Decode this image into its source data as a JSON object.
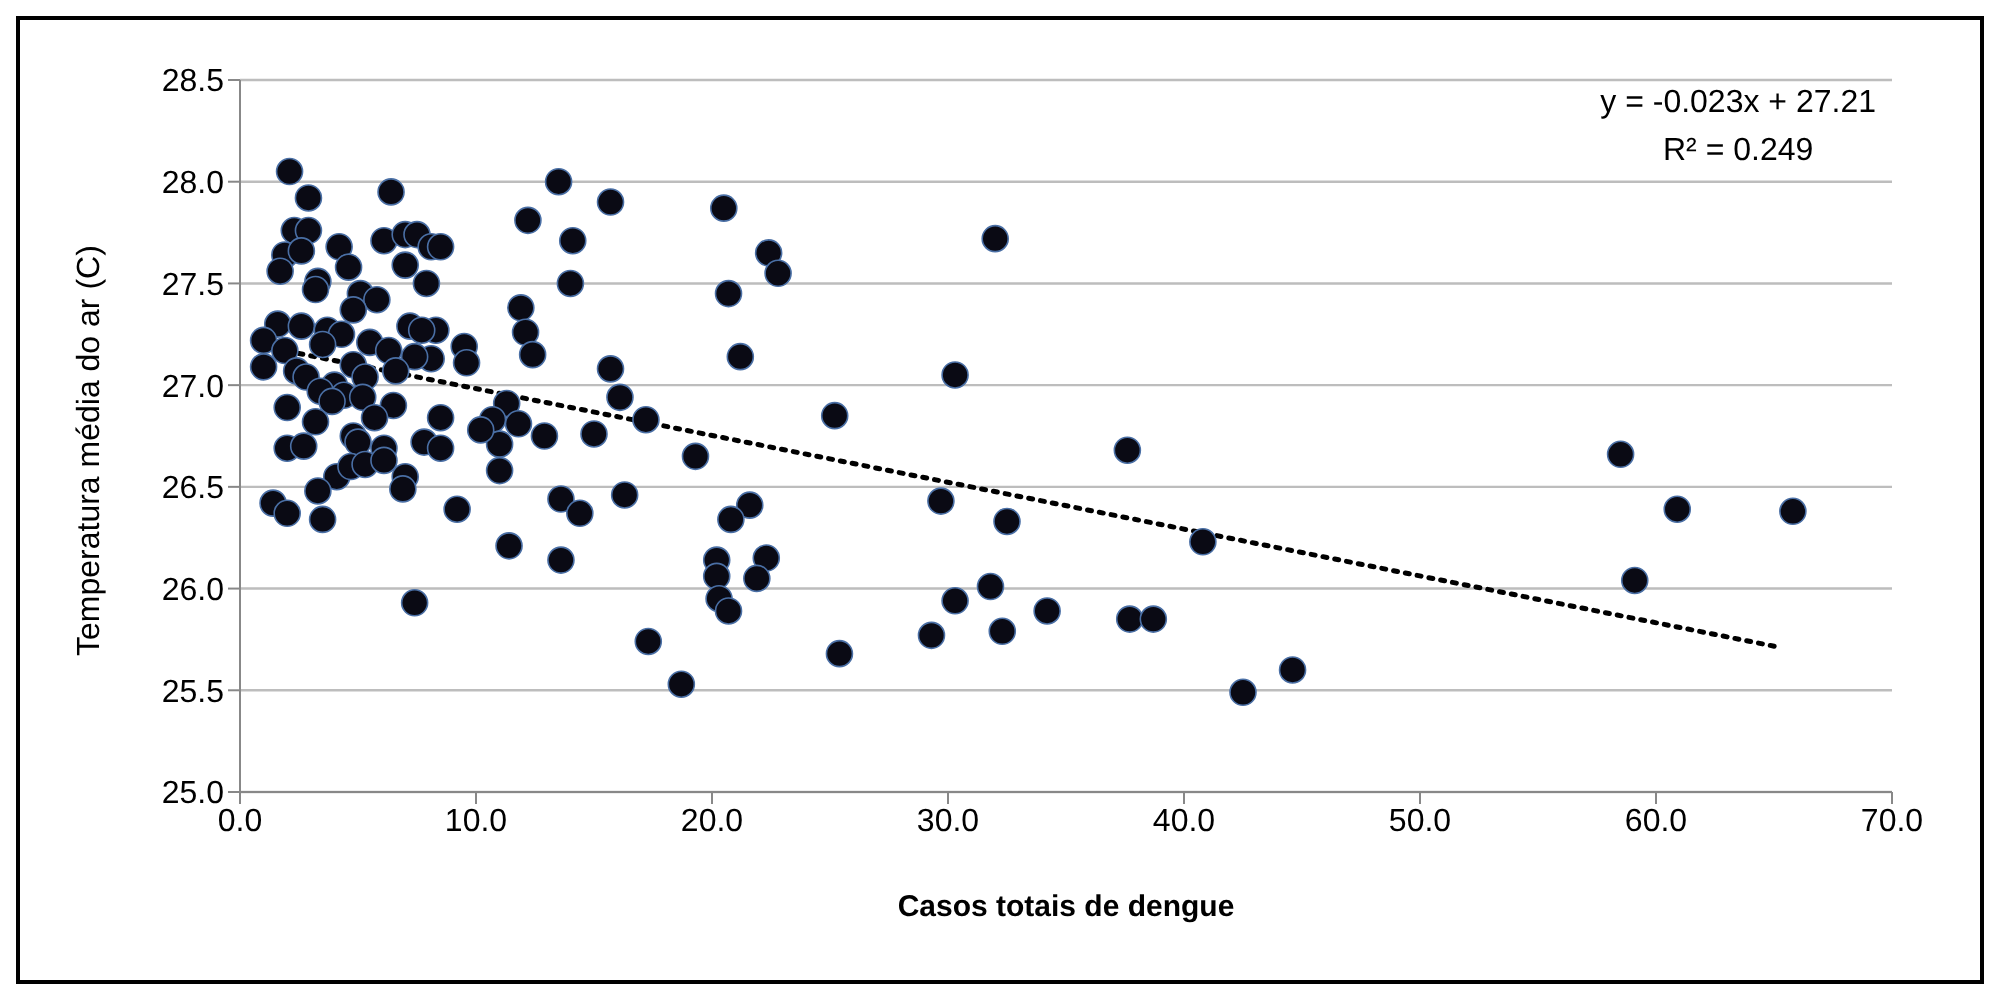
{
  "chart_data": {
    "type": "scatter",
    "xlabel": "Casos totais de dengue",
    "ylabel": "Temperatura média do ar (C)",
    "annotations": [
      "y = -0.023x + 27.21",
      "R² = 0.249"
    ],
    "xlim": [
      0,
      70
    ],
    "xticks": [
      {
        "value": 0,
        "label": "0.0"
      },
      {
        "value": 10,
        "label": "10.0"
      },
      {
        "value": 20,
        "label": "20.0"
      },
      {
        "value": 30,
        "label": "30.0"
      },
      {
        "value": 40,
        "label": "40.0"
      },
      {
        "value": 50,
        "label": "50.0"
      },
      {
        "value": 60,
        "label": "60.0"
      },
      {
        "value": 70,
        "label": "70.0"
      }
    ],
    "ylim": [
      25,
      28.5
    ],
    "yticks": [
      {
        "value": 25,
        "label": "25.0"
      },
      {
        "value": 25.5,
        "label": "25.5"
      },
      {
        "value": 26,
        "label": "26.0"
      },
      {
        "value": 26.5,
        "label": "26.5"
      },
      {
        "value": 27,
        "label": "27.0"
      },
      {
        "value": 27.5,
        "label": "27.5"
      },
      {
        "value": 28,
        "label": "28.0"
      },
      {
        "value": 28.5,
        "label": "28.5"
      }
    ],
    "grid": "y",
    "marker": "circle",
    "series": [
      {
        "color": "#0a0a14",
        "x": [
          2.1,
          2.9,
          6.4,
          2.3,
          2.9,
          12.2,
          13.5,
          1.9,
          2.6,
          4.2,
          6.1,
          7.0,
          7.5,
          8.1,
          8.5,
          1.7,
          4.6,
          7.0,
          3.3,
          3.2,
          7.9,
          5.1,
          5.8,
          4.8,
          11.9,
          12.1,
          12.4,
          1.6,
          1.0,
          1.0,
          2.6,
          3.7,
          4.3,
          1.9,
          3.5,
          5.5,
          7.2,
          8.3,
          7.7,
          9.5,
          9.6,
          6.3,
          8.1,
          7.4,
          2.4,
          2.8,
          4.8,
          5.3,
          6.6,
          4.0,
          4.4,
          3.4,
          3.9,
          5.2,
          2.0,
          3.2,
          6.5,
          5.7,
          8.5,
          4.8,
          5.0,
          2.0,
          2.7,
          6.1,
          7.8,
          8.5,
          4.1,
          4.7,
          5.3,
          6.1,
          7.0,
          6.9,
          3.3,
          1.4,
          2.0,
          3.5,
          9.2,
          11.3,
          10.7,
          11.8,
          11.0,
          10.2,
          12.9,
          11.0,
          11.4,
          7.4,
          15.7,
          14.1,
          14.0,
          20.5,
          22.4,
          22.8,
          20.7,
          21.2,
          15.7,
          16.1,
          17.2,
          19.3,
          15.0,
          25.2,
          13.6,
          14.4,
          16.3,
          13.6,
          21.6,
          20.8,
          20.2,
          20.2,
          20.3,
          20.7,
          22.3,
          21.9,
          17.3,
          18.7,
          25.4,
          30.3,
          37.6,
          29.7,
          32.5,
          40.8,
          30.3,
          31.8,
          29.3,
          32.3,
          34.2,
          37.7,
          38.7,
          42.5,
          44.6,
          58.5,
          60.9,
          65.8,
          59.1,
          32.0
        ],
        "values": [
          28.05,
          27.92,
          27.95,
          27.76,
          27.76,
          27.81,
          28.0,
          27.64,
          27.66,
          27.68,
          27.71,
          27.74,
          27.74,
          27.68,
          27.68,
          27.56,
          27.58,
          27.59,
          27.51,
          27.47,
          27.5,
          27.45,
          27.42,
          27.37,
          27.38,
          27.26,
          27.15,
          27.3,
          27.22,
          27.09,
          27.29,
          27.27,
          27.25,
          27.17,
          27.2,
          27.21,
          27.29,
          27.27,
          27.27,
          27.19,
          27.11,
          27.17,
          27.13,
          27.14,
          27.07,
          27.04,
          27.1,
          27.04,
          27.07,
          27.0,
          26.95,
          26.97,
          26.92,
          26.94,
          26.89,
          26.82,
          26.9,
          26.84,
          26.84,
          26.75,
          26.72,
          26.69,
          26.7,
          26.69,
          26.72,
          26.69,
          26.55,
          26.6,
          26.61,
          26.63,
          26.55,
          26.49,
          26.48,
          26.42,
          26.37,
          26.34,
          26.39,
          26.91,
          26.83,
          26.81,
          26.71,
          26.78,
          26.75,
          26.58,
          26.21,
          25.93,
          27.9,
          27.71,
          27.5,
          27.87,
          27.65,
          27.55,
          27.45,
          27.14,
          27.08,
          26.94,
          26.83,
          26.65,
          26.76,
          26.85,
          26.44,
          26.37,
          26.46,
          26.14,
          26.41,
          26.34,
          26.14,
          26.06,
          25.95,
          25.89,
          26.15,
          26.05,
          25.74,
          25.53,
          25.68,
          27.05,
          26.68,
          26.43,
          26.33,
          26.23,
          25.94,
          26.01,
          25.77,
          25.79,
          25.89,
          25.85,
          25.85,
          25.49,
          25.6,
          26.66,
          26.39,
          26.38,
          26.04,
          27.72
        ]
      },
      {
        "type": "line",
        "color": "#000000",
        "line_style": "dotted",
        "marker": "none",
        "x": [
          1.0,
          65.3
        ],
        "values": [
          27.19,
          25.71
        ]
      }
    ]
  }
}
